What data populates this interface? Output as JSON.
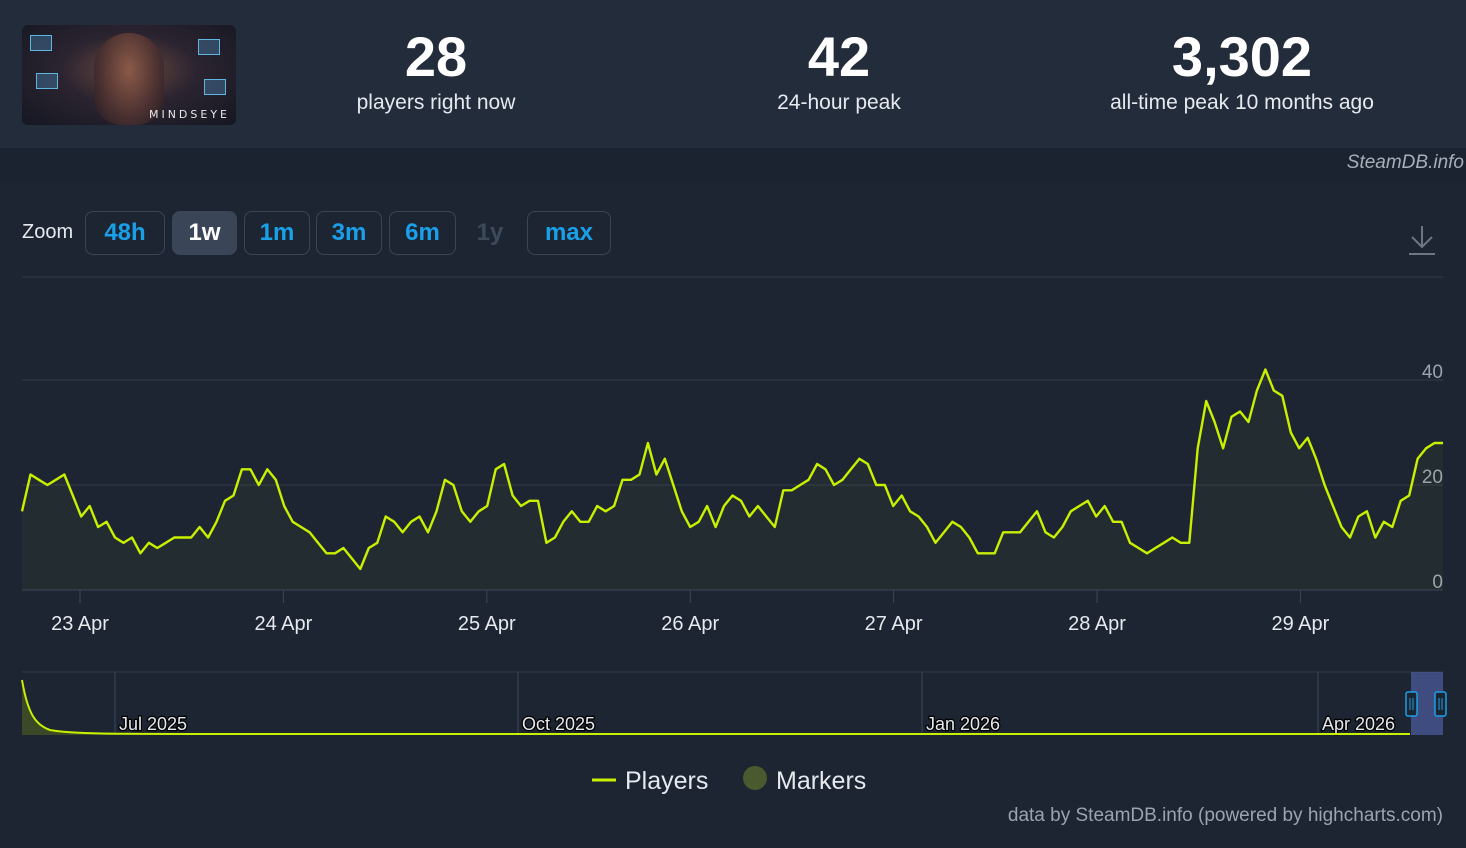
{
  "game": {
    "logo_text": "MINDSEYE"
  },
  "stats": [
    {
      "value": "28",
      "label": "players right now"
    },
    {
      "value": "42",
      "label": "24-hour peak"
    },
    {
      "value": "3,302",
      "label": "all-time peak 10 months ago"
    }
  ],
  "credit_top": "SteamDB.info",
  "zoom": {
    "label": "Zoom",
    "buttons": [
      {
        "label": "48h",
        "state": "normal"
      },
      {
        "label": "1w",
        "state": "active"
      },
      {
        "label": "1m",
        "state": "normal"
      },
      {
        "label": "3m",
        "state": "normal"
      },
      {
        "label": "6m",
        "state": "normal"
      },
      {
        "label": "1y",
        "state": "disabled"
      },
      {
        "label": "max",
        "state": "normal"
      }
    ]
  },
  "legend": {
    "players": "Players",
    "markers": "Markers"
  },
  "credit_bottom": "data by SteamDB.info (powered by highcharts.com)",
  "colors": {
    "line": "#c8f000",
    "marker": "#4a5a2e",
    "accent": "#1aa0e8"
  },
  "chart_data": {
    "type": "line",
    "title": "",
    "xlabel": "",
    "ylabel": "",
    "x_ticks": [
      "23 Apr",
      "24 Apr",
      "25 Apr",
      "26 Apr",
      "27 Apr",
      "28 Apr",
      "29 Apr"
    ],
    "y_ticks": [
      "0",
      "20",
      "40"
    ],
    "ylim": [
      0,
      40
    ],
    "grid": true,
    "legend_position": "bottom",
    "series": [
      {
        "name": "Players",
        "values": [
          15,
          22,
          21,
          20,
          21,
          22,
          18,
          14,
          16,
          12,
          13,
          10,
          9,
          10,
          7,
          9,
          8,
          9,
          10,
          10,
          10,
          12,
          10,
          13,
          17,
          18,
          23,
          23,
          20,
          23,
          21,
          16,
          13,
          12,
          11,
          9,
          7,
          7,
          8,
          6,
          4,
          8,
          9,
          14,
          13,
          11,
          13,
          14,
          11,
          15,
          21,
          20,
          15,
          13,
          15,
          16,
          23,
          24,
          18,
          16,
          17,
          17,
          9,
          10,
          13,
          15,
          13,
          13,
          16,
          15,
          16,
          21,
          21,
          22,
          28,
          22,
          25,
          20,
          15,
          12,
          13,
          16,
          12,
          16,
          18,
          17,
          14,
          16,
          14,
          12,
          19,
          19,
          20,
          21,
          24,
          23,
          20,
          21,
          23,
          25,
          24,
          20,
          20,
          16,
          18,
          15,
          14,
          12,
          9,
          11,
          13,
          12,
          10,
          7,
          7,
          7,
          11,
          11,
          11,
          13,
          15,
          11,
          10,
          12,
          15,
          16,
          17,
          14,
          16,
          13,
          13,
          9,
          8,
          7,
          8,
          9,
          10,
          9,
          9,
          27,
          36,
          32,
          27,
          33,
          34,
          32,
          38,
          42,
          38,
          37,
          30,
          27,
          29,
          25,
          20,
          16,
          12,
          10,
          14,
          15,
          10,
          13,
          12,
          17,
          18,
          25,
          27,
          28,
          28
        ]
      }
    ],
    "navigator": {
      "x_ticks": [
        "Jul 2025",
        "Oct 2025",
        "Jan 2026",
        "Apr 2026"
      ]
    }
  }
}
